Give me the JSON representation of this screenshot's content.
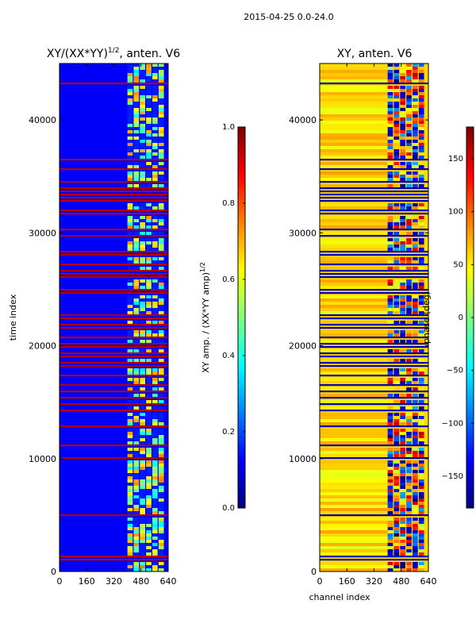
{
  "figure_title": "2015-04-25 0.0-24.0",
  "chart_data": [
    {
      "type": "heatmap",
      "title": "XY/(XX*YY)",
      "title_superscript": "1/2",
      "title_suffix": ", anten. V6",
      "xlabel": "",
      "ylabel": "time index",
      "xlim": [
        0,
        640
      ],
      "ylim": [
        0,
        45000
      ],
      "x_ticks": [
        0,
        160,
        320,
        480,
        640
      ],
      "y_ticks": [
        0,
        10000,
        20000,
        30000,
        40000
      ],
      "colormap": "jet",
      "colorbar": {
        "label": "XY amp. / (XX*YY amp)",
        "label_superscript": "1/2",
        "range": [
          0.0,
          1.0
        ],
        "ticks": [
          "0.0",
          "0.2",
          "0.4",
          "0.6",
          "0.8",
          "1.0"
        ],
        "tick_values": [
          0.0,
          0.2,
          0.4,
          0.6,
          0.8,
          1.0
        ]
      },
      "description_values": {
        "background_value": 0.05,
        "active_channel_range": [
          400,
          620
        ],
        "flagged_row_value": 1.0
      }
    },
    {
      "type": "heatmap",
      "title": "XY, anten. V6",
      "xlabel": "channel index",
      "ylabel": "",
      "xlim": [
        0,
        640
      ],
      "ylim": [
        0,
        45000
      ],
      "x_ticks": [
        0,
        160,
        320,
        480,
        640
      ],
      "y_ticks": [
        0,
        10000,
        20000,
        30000,
        40000
      ],
      "colormap": "jet",
      "colorbar": {
        "label": "phase (deg)",
        "range": [
          -180,
          180
        ],
        "ticks": [
          "150",
          "100",
          "50",
          "0",
          "−50",
          "−100",
          "−150"
        ],
        "tick_values": [
          150,
          100,
          50,
          0,
          -50,
          -100,
          -150
        ]
      },
      "description_values": {
        "background_value": 60,
        "active_channel_range": [
          400,
          620
        ]
      }
    }
  ]
}
